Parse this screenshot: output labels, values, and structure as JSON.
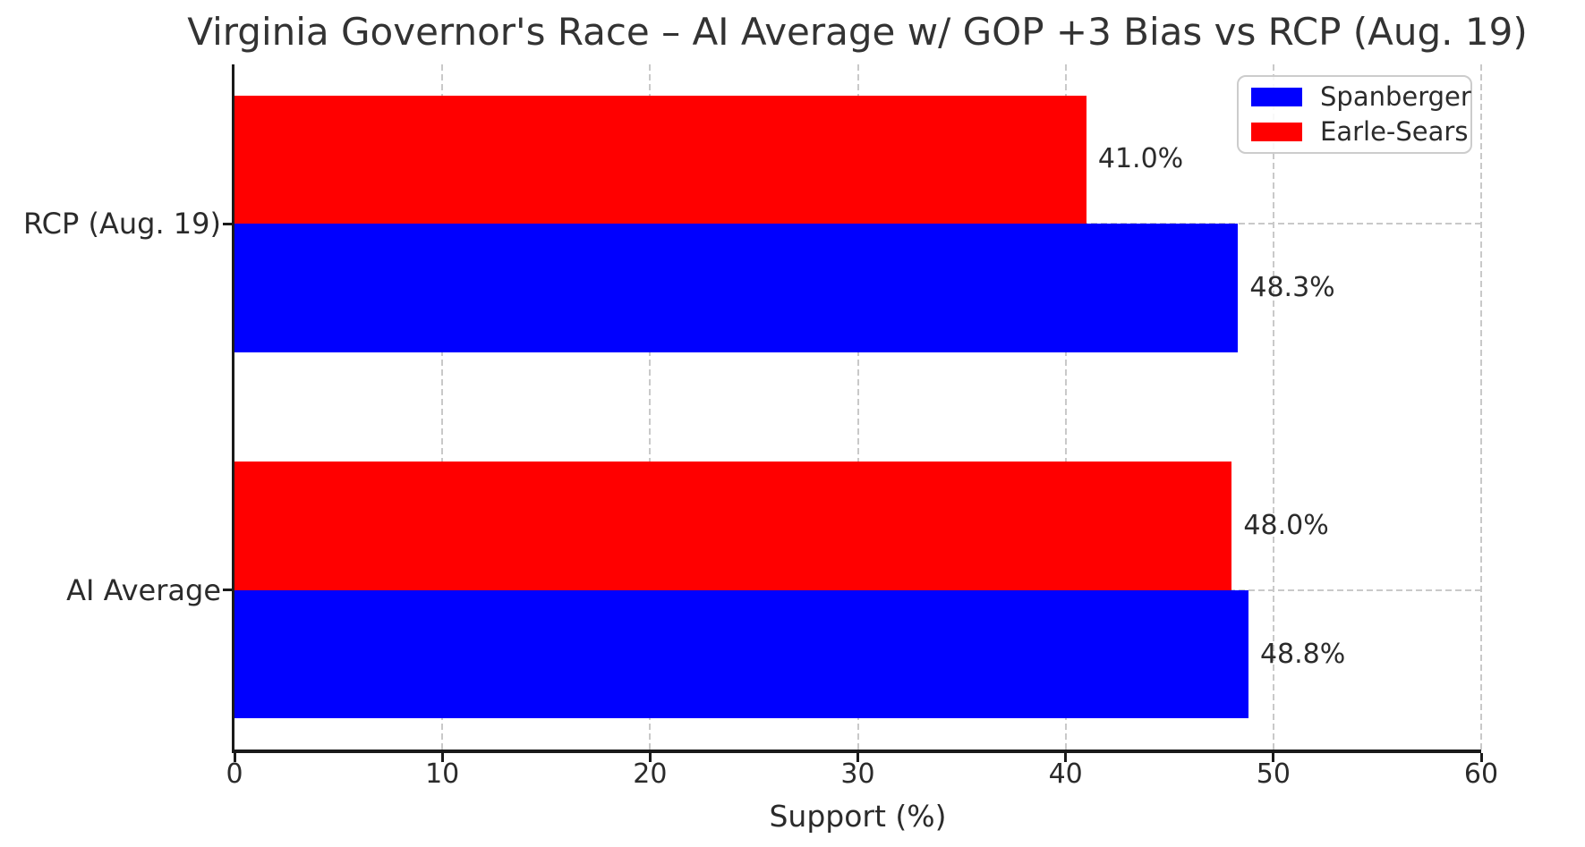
{
  "figure": {
    "background": "#ffffff"
  },
  "chart_data": {
    "type": "bar",
    "orientation": "horizontal",
    "title": "Virginia Governor's Race – AI Average w/ GOP +3 Bias vs RCP (Aug. 19)",
    "xlabel": "Support (%)",
    "ylabel": "",
    "xlim": [
      0,
      60
    ],
    "xticks": [
      0,
      10,
      20,
      30,
      40,
      50,
      60
    ],
    "grid": "dashed, both axes, light gray",
    "legend_position": "upper-right",
    "categories": [
      "RCP (Aug. 19)",
      "AI Average"
    ],
    "series": [
      {
        "name": "Spanberger",
        "color": "#0000ff",
        "values": [
          48.3,
          48.8
        ],
        "labels": [
          "48.3%",
          "48.8%"
        ]
      },
      {
        "name": "Earle-Sears",
        "color": "#ff0000",
        "values": [
          41.0,
          48.0
        ],
        "labels": [
          "41.0%",
          "48.0%"
        ]
      }
    ],
    "group_order_top_to_bottom": [
      "Earle-Sears",
      "Spanberger"
    ]
  },
  "colors": {
    "bar_blue": "#0000ff",
    "bar_red": "#ff0000",
    "text": "#2b2b2b",
    "spine": "#1a1a1a",
    "grid": "#c9c9c9",
    "legend_border": "#cccccc"
  }
}
